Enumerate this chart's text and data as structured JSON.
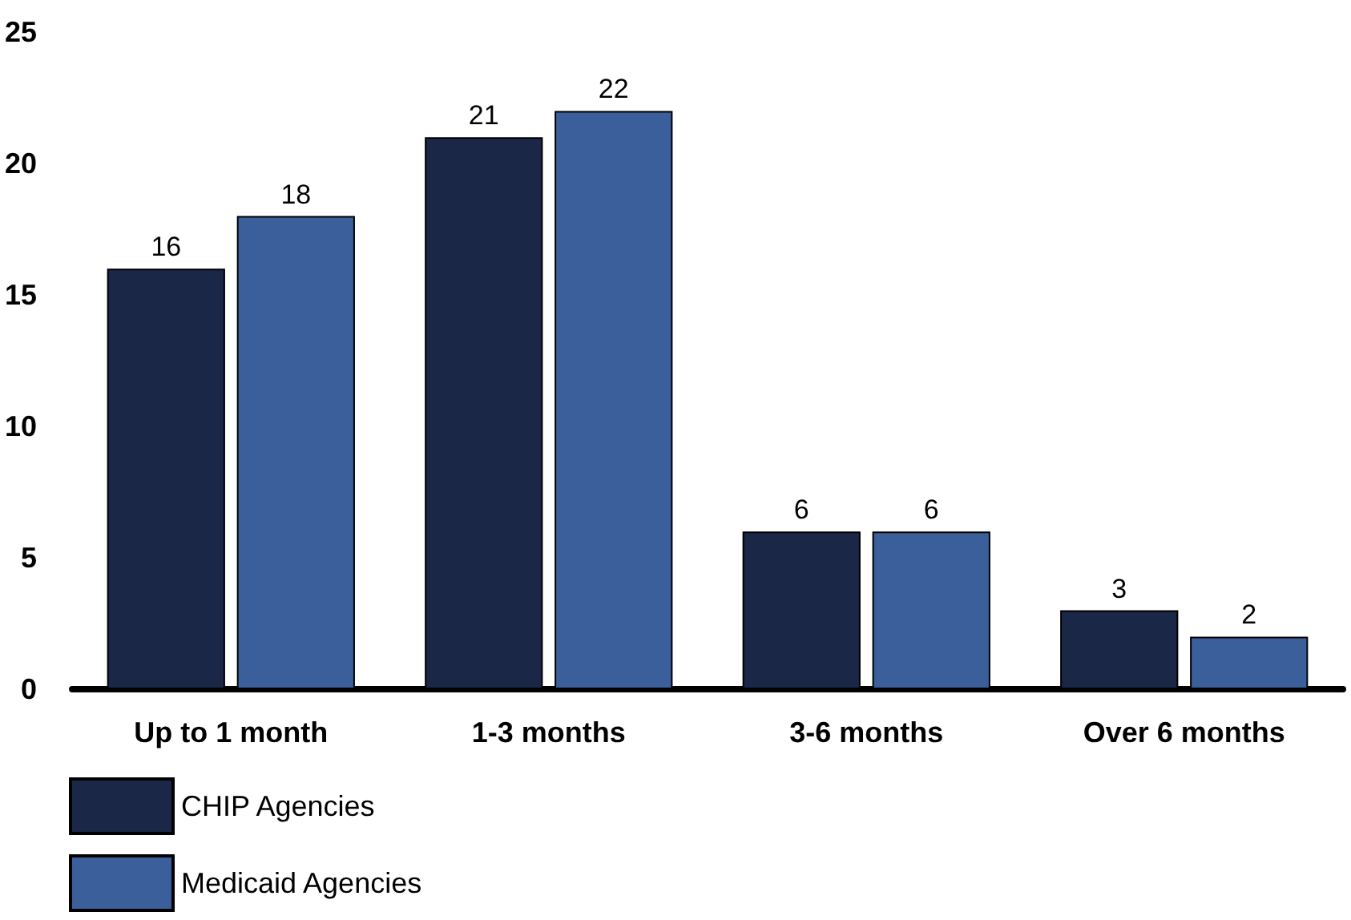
{
  "chart_data": {
    "type": "bar",
    "categories": [
      "Up to 1 month",
      "1-3 months",
      "3-6 months",
      "Over 6 months"
    ],
    "series": [
      {
        "name": "CHIP Agencies",
        "color": "#1b2747",
        "values": [
          16,
          21,
          6,
          3
        ]
      },
      {
        "name": "Medicaid Agencies",
        "color": "#3a5f9a",
        "values": [
          18,
          22,
          6,
          2
        ]
      }
    ],
    "ylim": [
      0,
      25
    ],
    "yticks": [
      0,
      5,
      10,
      15,
      20,
      25
    ],
    "grid": false,
    "legend": "bottom left",
    "data_labels": true
  }
}
